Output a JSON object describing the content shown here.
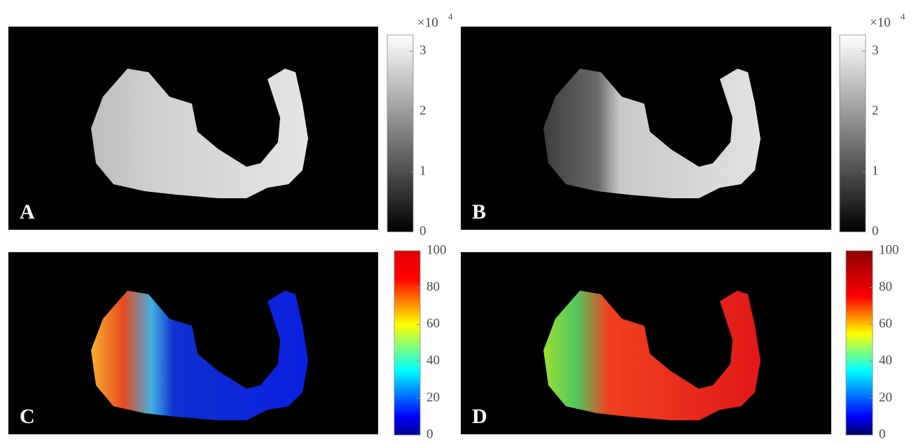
{
  "panels": [
    {
      "label": "A",
      "colorbar": {
        "type": "grayscale",
        "lim": [
          0,
          3.27
        ],
        "ticks": [
          0,
          1,
          2,
          3
        ],
        "multiplier": {
          "base": "×10",
          "power": "4"
        }
      }
    },
    {
      "label": "B",
      "colorbar": {
        "type": "grayscale",
        "lim": [
          0,
          3.27
        ],
        "ticks": [
          0,
          1,
          2,
          3
        ],
        "multiplier": {
          "base": "×10",
          "power": "4"
        }
      }
    },
    {
      "label": "C",
      "colorbar": {
        "type": "jet",
        "lim": [
          0,
          100
        ],
        "ticks": [
          0,
          20,
          40,
          60,
          80,
          100
        ]
      }
    },
    {
      "label": "D",
      "colorbar": {
        "type": "jet-dark",
        "lim": [
          0,
          100
        ],
        "ticks": [
          0,
          20,
          40,
          60,
          80,
          100
        ]
      }
    }
  ]
}
